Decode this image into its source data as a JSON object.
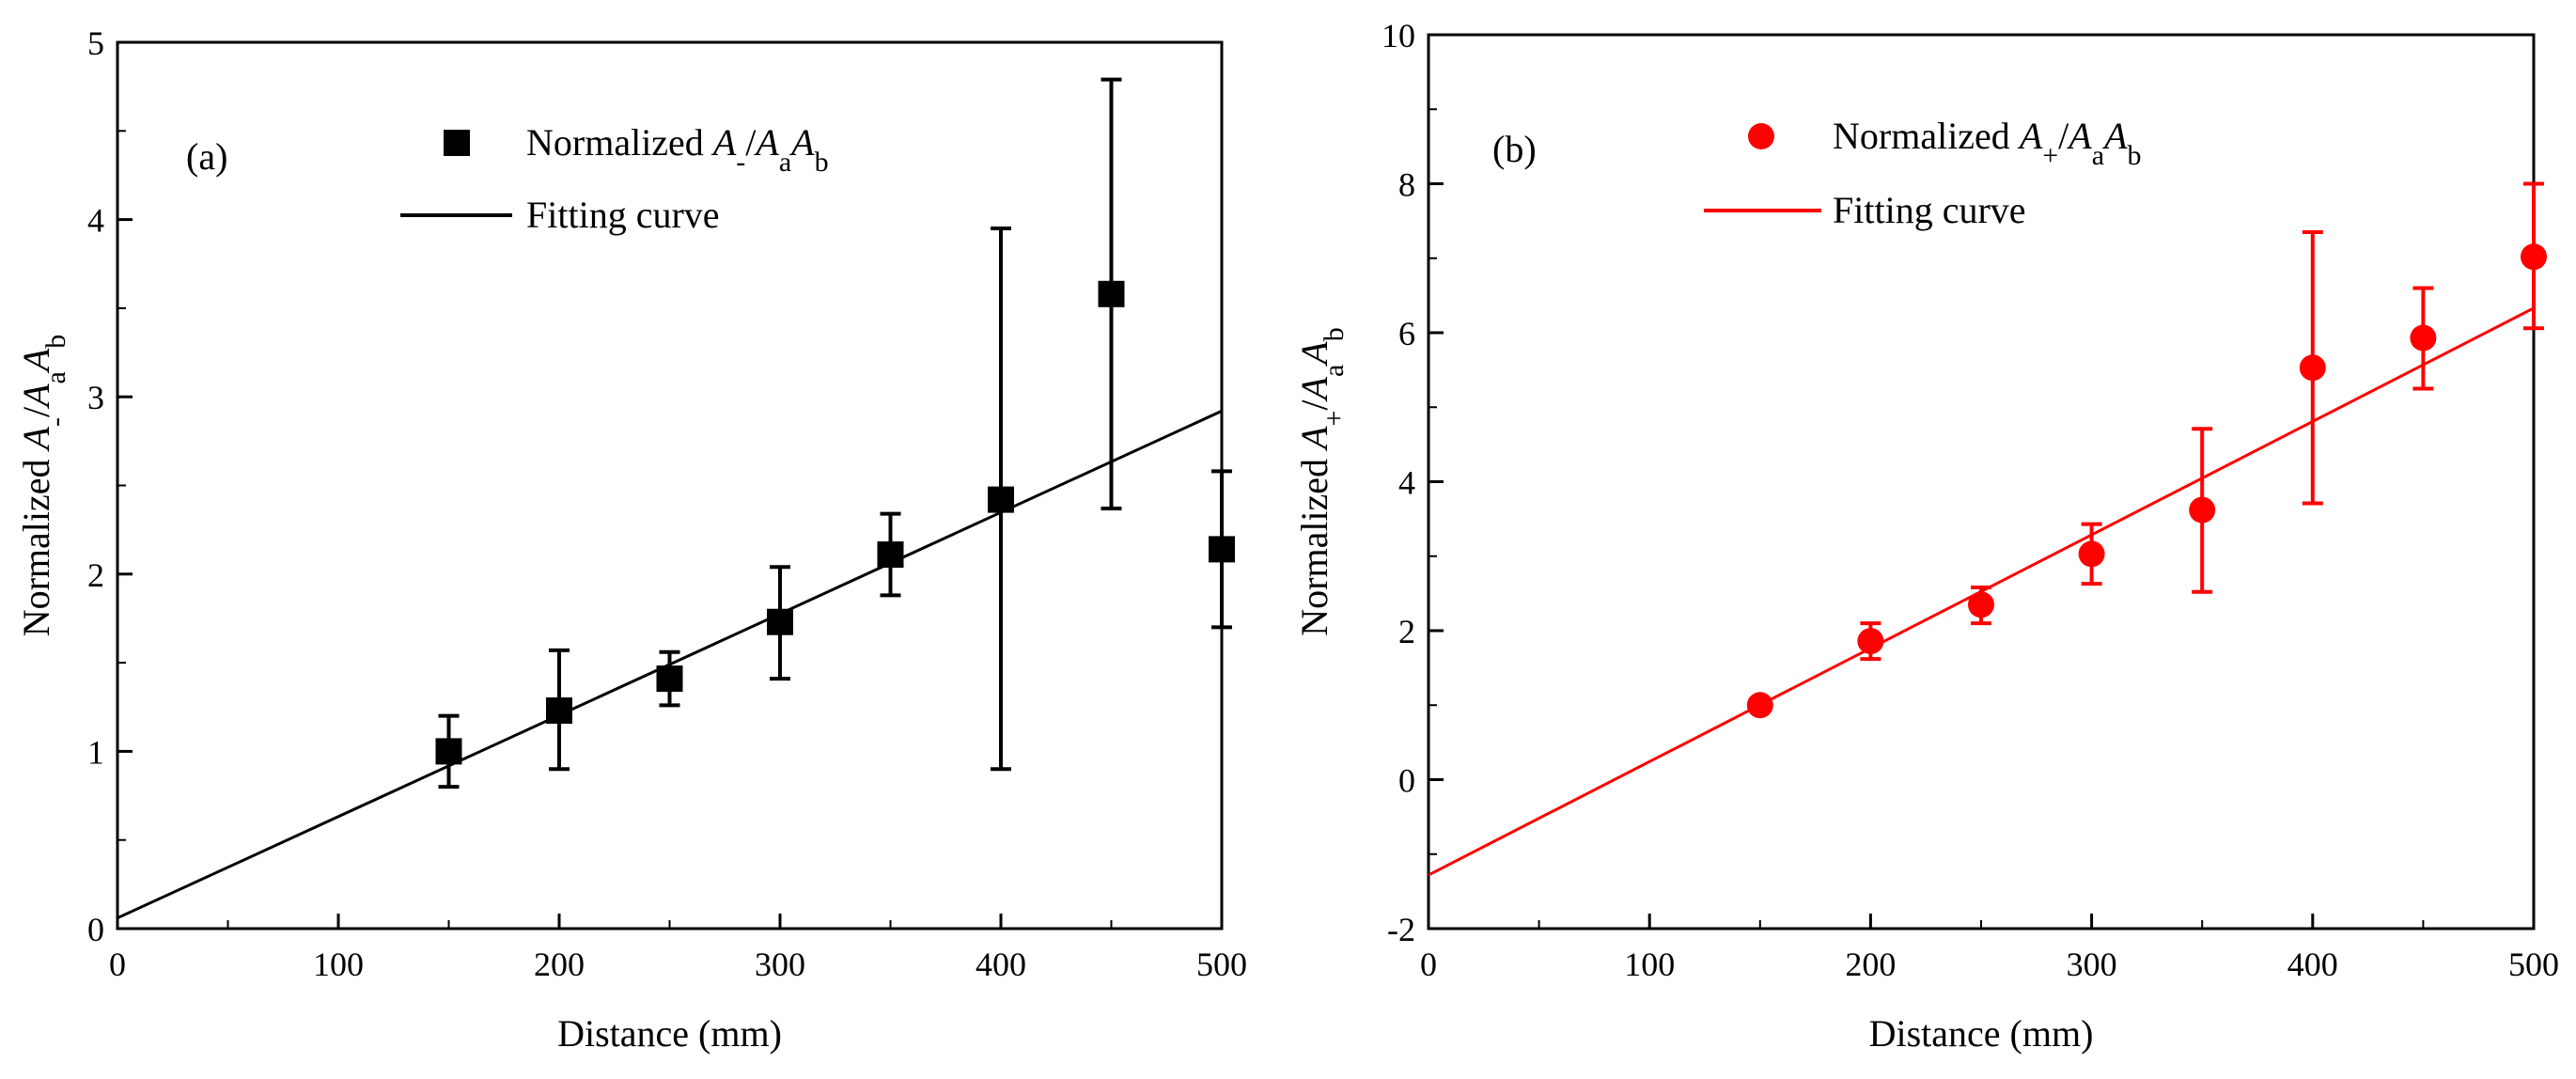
{
  "chart_data": [
    {
      "type": "scatter",
      "panel_label": "(a)",
      "color": "#000000",
      "marker": "square",
      "xlabel": "Distance (mm)",
      "ylabel": {
        "prefix": "Normalized ",
        "A": "A",
        "sub1": "-",
        "slash": "/",
        "A2": "A",
        "sub2": "a",
        "A3": "A",
        "sub3": "b"
      },
      "xlim": [
        0,
        500
      ],
      "ylim": [
        0,
        5
      ],
      "xticks": [
        0,
        100,
        200,
        300,
        400,
        500
      ],
      "yticks": [
        0,
        1,
        2,
        3,
        4,
        5
      ],
      "legend_placement": "top-center",
      "series": [
        {
          "name": "Normalized A-/AaAb",
          "legend": {
            "prefix": "Normalized ",
            "A": "A",
            "sub1": "-",
            "slash": "/",
            "A2": "A",
            "sub2": "a",
            "A3": "A",
            "sub3": "b"
          },
          "x": [
            150,
            200,
            250,
            300,
            350,
            400,
            450,
            500
          ],
          "y": [
            1.0,
            1.23,
            1.41,
            1.73,
            2.11,
            2.42,
            3.58,
            2.14
          ],
          "err_low": [
            0.8,
            0.9,
            1.26,
            1.41,
            1.88,
            0.9,
            2.37,
            1.7
          ],
          "err_high": [
            1.2,
            1.57,
            1.56,
            2.04,
            2.34,
            3.95,
            4.79,
            2.58
          ]
        },
        {
          "name": "Fitting curve",
          "legend_label": "Fitting curve",
          "type": "line",
          "x": [
            0,
            500
          ],
          "y": [
            0.06,
            2.92
          ]
        }
      ]
    },
    {
      "type": "scatter",
      "panel_label": "(b)",
      "color": "#ff0000",
      "marker": "circle",
      "xlabel": "Distance (mm)",
      "ylabel": {
        "prefix": "Normalized ",
        "A": "A",
        "sub1": "+",
        "slash": "/",
        "A2": "A",
        "sub2": "a",
        "A3": "A",
        "sub3": "b"
      },
      "xlim": [
        0,
        500
      ],
      "ylim": [
        -2,
        10
      ],
      "xticks": [
        0,
        100,
        200,
        300,
        400,
        500
      ],
      "yticks": [
        -2,
        0,
        2,
        4,
        6,
        8,
        10
      ],
      "legend_placement": "top-center",
      "series": [
        {
          "name": "Normalized A+/AaAb",
          "legend": {
            "prefix": "Normalized ",
            "A": "A",
            "sub1": "+",
            "slash": "/",
            "A2": "A",
            "sub2": "a",
            "A3": "A",
            "sub3": "b"
          },
          "x": [
            150,
            200,
            250,
            300,
            350,
            400,
            450,
            500
          ],
          "y": [
            1.0,
            1.86,
            2.35,
            3.03,
            3.62,
            5.53,
            5.93,
            7.02
          ],
          "err_low": [
            1.0,
            1.62,
            2.1,
            2.63,
            2.52,
            3.71,
            5.25,
            6.06
          ],
          "err_high": [
            1.0,
            2.1,
            2.58,
            3.43,
            4.71,
            7.35,
            6.6,
            8.0
          ]
        },
        {
          "name": "Fitting curve",
          "legend_label": "Fitting curve",
          "type": "line",
          "x": [
            0,
            500
          ],
          "y": [
            -1.28,
            6.33
          ]
        }
      ]
    }
  ]
}
